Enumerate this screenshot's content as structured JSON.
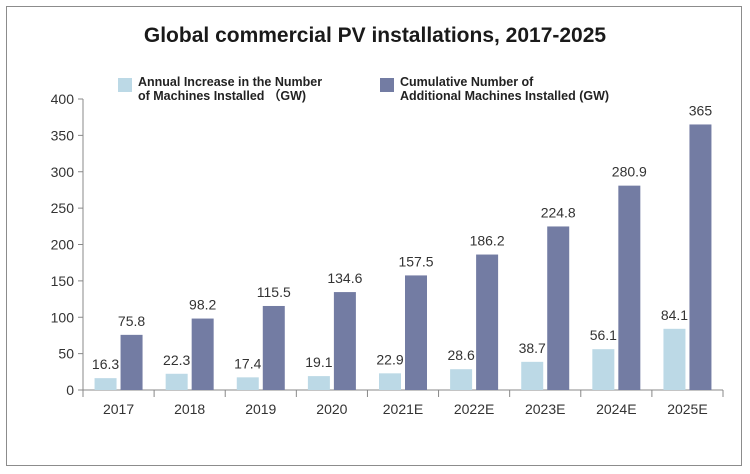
{
  "chart_data": {
    "type": "bar",
    "title": "Global commercial PV installations, 2017-2025",
    "xlabel": "",
    "ylabel": "",
    "ylim": [
      0,
      400
    ],
    "yticks": [
      "0",
      "50",
      "100",
      "150",
      "200",
      "250",
      "300",
      "350",
      "400"
    ],
    "categories": [
      "2017",
      "2018",
      "2019",
      "2020",
      "2021E",
      "2022E",
      "2023E",
      "2024E",
      "2025E"
    ],
    "series": [
      {
        "name": "Annual Increase in the Number\nof Machines Installed （GW)",
        "color": "#bcd9e6",
        "values": [
          16.3,
          22.3,
          17.4,
          19.1,
          22.9,
          28.6,
          38.7,
          56.1,
          84.1
        ],
        "labels": [
          "16.3",
          "22.3",
          "17.4",
          "19.1",
          "22.9",
          "28.6",
          "38.7",
          "56.1",
          "84.1"
        ]
      },
      {
        "name": "Cumulative Number of\nAdditional Machines Installed (GW)",
        "color": "#737ca3",
        "values": [
          75.8,
          98.2,
          115.5,
          134.6,
          157.5,
          186.2,
          224.8,
          280.9,
          365
        ],
        "labels": [
          "75.8",
          "98.2",
          "115.5",
          "134.6",
          "157.5",
          "186.2",
          "224.8",
          "280.9",
          "365"
        ]
      }
    ],
    "legend": "top",
    "grid": false
  }
}
